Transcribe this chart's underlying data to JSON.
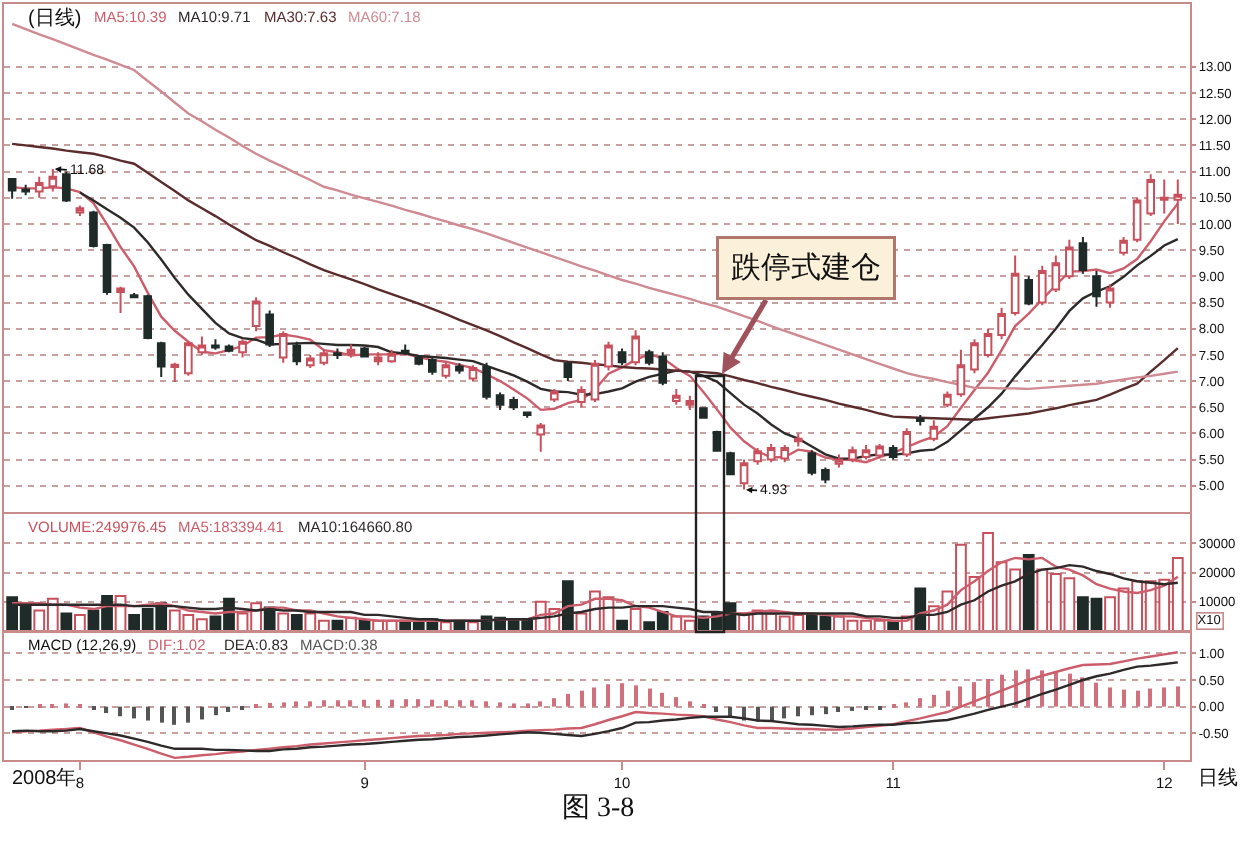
{
  "chart_data": [
    {
      "type": "candlestick",
      "title": "(日线)",
      "categories": [
        null,
        null,
        null,
        null,
        null,
        "8",
        null,
        null,
        null,
        null,
        null,
        null,
        null,
        null,
        null,
        null,
        null,
        null,
        null,
        null,
        null,
        null,
        null,
        null,
        null,
        null,
        "9",
        null,
        null,
        null,
        null,
        null,
        null,
        null,
        null,
        null,
        null,
        null,
        null,
        null,
        null,
        null,
        null,
        null,
        null,
        "10",
        null,
        null,
        null,
        null,
        null,
        null,
        null,
        null,
        null,
        null,
        null,
        null,
        null,
        null,
        null,
        null,
        null,
        null,
        null,
        "11",
        null,
        null,
        null,
        null,
        null,
        null,
        null,
        null,
        null,
        null,
        null,
        null,
        null,
        null,
        null,
        null,
        null,
        null,
        null,
        "12",
        null
      ],
      "ohlc": [
        [
          10.86,
          10.88,
          10.48,
          10.64
        ],
        [
          10.66,
          10.75,
          10.55,
          10.62
        ],
        [
          10.62,
          10.9,
          10.5,
          10.78
        ],
        [
          10.72,
          11.05,
          10.62,
          10.9
        ],
        [
          10.95,
          11.0,
          10.42,
          10.45
        ],
        [
          10.22,
          10.35,
          10.15,
          10.3
        ],
        [
          10.22,
          10.25,
          9.55,
          9.58
        ],
        [
          9.6,
          9.62,
          8.65,
          8.7
        ],
        [
          8.7,
          8.8,
          8.3,
          8.77
        ],
        [
          8.64,
          8.68,
          8.58,
          8.6
        ],
        [
          8.62,
          8.65,
          7.8,
          7.82
        ],
        [
          7.72,
          7.75,
          7.08,
          7.28
        ],
        [
          7.27,
          7.35,
          6.98,
          7.31
        ],
        [
          7.15,
          7.75,
          7.1,
          7.72
        ],
        [
          7.55,
          7.85,
          7.5,
          7.68
        ],
        [
          7.68,
          7.8,
          7.6,
          7.64
        ],
        [
          7.66,
          7.7,
          7.55,
          7.58
        ],
        [
          7.55,
          7.8,
          7.45,
          7.75
        ],
        [
          8.05,
          8.6,
          7.95,
          8.52
        ],
        [
          8.27,
          8.35,
          7.65,
          7.7
        ],
        [
          7.45,
          7.95,
          7.35,
          7.9
        ],
        [
          7.68,
          7.75,
          7.3,
          7.38
        ],
        [
          7.3,
          7.5,
          7.25,
          7.43
        ],
        [
          7.35,
          7.6,
          7.3,
          7.53
        ],
        [
          7.53,
          7.62,
          7.42,
          7.5
        ],
        [
          7.52,
          7.7,
          7.45,
          7.6
        ],
        [
          7.62,
          7.65,
          7.45,
          7.47
        ],
        [
          7.38,
          7.55,
          7.3,
          7.45
        ],
        [
          7.38,
          7.6,
          7.35,
          7.52
        ],
        [
          7.58,
          7.7,
          7.5,
          7.54
        ],
        [
          7.44,
          7.5,
          7.3,
          7.33
        ],
        [
          7.4,
          7.45,
          7.12,
          7.18
        ],
        [
          7.1,
          7.35,
          7.05,
          7.3
        ],
        [
          7.28,
          7.34,
          7.14,
          7.2
        ],
        [
          7.05,
          7.3,
          7.0,
          7.25
        ],
        [
          7.27,
          7.35,
          6.65,
          6.7
        ],
        [
          6.73,
          6.78,
          6.45,
          6.55
        ],
        [
          6.64,
          6.7,
          6.45,
          6.5
        ],
        [
          6.4,
          6.42,
          6.3,
          6.35
        ],
        [
          5.98,
          6.2,
          5.65,
          6.15
        ],
        [
          6.65,
          6.85,
          6.6,
          6.8
        ],
        [
          7.34,
          7.38,
          7.0,
          7.08
        ],
        [
          6.6,
          6.9,
          6.5,
          6.83
        ],
        [
          6.65,
          7.4,
          6.6,
          7.33
        ],
        [
          7.28,
          7.75,
          7.2,
          7.68
        ],
        [
          7.55,
          7.62,
          7.3,
          7.36
        ],
        [
          7.36,
          7.97,
          7.3,
          7.85
        ],
        [
          7.55,
          7.6,
          7.3,
          7.35
        ],
        [
          7.47,
          7.55,
          6.92,
          6.97
        ],
        [
          6.62,
          6.85,
          6.55,
          6.72
        ],
        [
          6.55,
          6.72,
          6.45,
          6.62
        ],
        [
          6.48,
          6.5,
          6.28,
          6.3
        ],
        [
          6.03,
          6.05,
          5.65,
          5.67
        ],
        [
          5.62,
          5.65,
          5.2,
          5.22
        ],
        [
          5.05,
          5.5,
          4.93,
          5.43
        ],
        [
          5.47,
          5.72,
          5.4,
          5.66
        ],
        [
          5.5,
          5.8,
          5.45,
          5.72
        ],
        [
          5.52,
          5.78,
          5.45,
          5.72
        ],
        [
          5.85,
          6.0,
          5.75,
          5.9
        ],
        [
          5.62,
          5.68,
          5.2,
          5.25
        ],
        [
          5.3,
          5.35,
          5.05,
          5.12
        ],
        [
          5.42,
          5.6,
          5.35,
          5.5
        ],
        [
          5.5,
          5.75,
          5.45,
          5.68
        ],
        [
          5.55,
          5.78,
          5.5,
          5.68
        ],
        [
          5.58,
          5.8,
          5.52,
          5.75
        ],
        [
          5.72,
          5.78,
          5.5,
          5.55
        ],
        [
          5.6,
          6.1,
          5.55,
          6.03
        ],
        [
          6.28,
          6.35,
          6.15,
          6.24
        ],
        [
          5.9,
          6.25,
          5.85,
          6.13
        ],
        [
          6.55,
          6.8,
          6.5,
          6.74
        ],
        [
          6.75,
          7.6,
          6.7,
          7.3
        ],
        [
          7.22,
          7.8,
          7.15,
          7.72
        ],
        [
          7.5,
          8.0,
          7.45,
          7.9
        ],
        [
          7.88,
          8.4,
          7.8,
          8.28
        ],
        [
          8.3,
          9.4,
          8.25,
          9.05
        ],
        [
          8.93,
          9.0,
          8.45,
          8.48
        ],
        [
          8.5,
          9.2,
          8.45,
          9.1
        ],
        [
          8.75,
          9.4,
          8.7,
          9.25
        ],
        [
          9.0,
          9.7,
          8.95,
          9.55
        ],
        [
          9.63,
          9.75,
          9.05,
          9.12
        ],
        [
          9.0,
          9.1,
          8.42,
          8.62
        ],
        [
          8.5,
          8.85,
          8.4,
          8.77
        ],
        [
          9.45,
          9.75,
          9.4,
          9.68
        ],
        [
          9.7,
          10.5,
          9.65,
          10.45
        ],
        [
          10.2,
          10.95,
          10.15,
          10.84
        ],
        [
          10.46,
          10.85,
          10.2,
          10.5
        ],
        [
          10.46,
          10.85,
          10.0,
          10.56
        ]
      ],
      "colors": [
        "#1f2b28",
        "#1f2b28",
        "#c8505c",
        "#c8505c",
        "#1f2b28",
        "#c8505c",
        "#1f2b28",
        "#1f2b28",
        "#c8505c",
        "#1f2b28",
        "#1f2b28",
        "#1f2b28",
        "#c8505c",
        "#c8505c",
        "#c8505c",
        "#1f2b28",
        "#1f2b28",
        "#c8505c",
        "#c8505c",
        "#1f2b28",
        "#c8505c",
        "#1f2b28",
        "#c8505c",
        "#c8505c",
        "#1f2b28",
        "#c8505c",
        "#1f2b28",
        "#c8505c",
        "#c8505c",
        "#1f2b28",
        "#1f2b28",
        "#1f2b28",
        "#c8505c",
        "#1f2b28",
        "#c8505c",
        "#1f2b28",
        "#1f2b28",
        "#1f2b28",
        "#1f2b28",
        "#c8505c",
        "#c8505c",
        "#1f2b28",
        "#c8505c",
        "#c8505c",
        "#c8505c",
        "#1f2b28",
        "#c8505c",
        "#1f2b28",
        "#1f2b28",
        "#c8505c",
        "#c8505c",
        "#1f2b28",
        "#1f2b28",
        "#1f2b28",
        "#c8505c",
        "#c8505c",
        "#c8505c",
        "#c8505c",
        "#c8505c",
        "#1f2b28",
        "#1f2b28",
        "#c8505c",
        "#c8505c",
        "#c8505c",
        "#c8505c",
        "#1f2b28",
        "#c8505c",
        "#1f2b28",
        "#c8505c",
        "#c8505c",
        "#c8505c",
        "#c8505c",
        "#c8505c",
        "#c8505c",
        "#c8505c",
        "#1f2b28",
        "#c8505c",
        "#c8505c",
        "#c8505c",
        "#1f2b28",
        "#1f2b28",
        "#c8505c",
        "#c8505c",
        "#c8505c",
        "#c8505c",
        "#c8505c",
        "#c8505c"
      ],
      "series": [
        {
          "name": "MA5:10.39",
          "type": "line",
          "color": "#cc5d6b",
          "values": [
            10.7,
            10.68,
            10.68,
            10.7,
            10.68,
            10.61,
            10.4,
            9.99,
            9.56,
            9.19,
            8.69,
            8.23,
            7.96,
            7.75,
            7.56,
            7.53,
            7.59,
            7.67,
            7.83,
            7.84,
            7.89,
            7.85,
            7.79,
            7.59,
            7.55,
            7.49,
            7.51,
            7.51,
            7.51,
            7.52,
            7.46,
            7.4,
            7.37,
            7.31,
            7.25,
            7.13,
            7.0,
            6.84,
            6.67,
            6.45,
            6.47,
            6.58,
            6.64,
            6.84,
            7.14,
            7.26,
            7.41,
            7.51,
            7.44,
            7.25,
            7.1,
            6.79,
            6.46,
            6.11,
            5.85,
            5.66,
            5.54,
            5.55,
            5.69,
            5.65,
            5.54,
            5.5,
            5.49,
            5.45,
            5.55,
            5.63,
            5.74,
            5.85,
            5.94,
            6.14,
            6.49,
            6.83,
            7.16,
            7.59,
            8.05,
            8.29,
            8.56,
            8.83,
            9.09,
            9.1,
            9.13,
            9.06,
            9.15,
            9.33,
            9.67,
            10.05,
            10.39
          ]
        },
        {
          "name": "MA10:9.71",
          "type": "line",
          "color": "#2e2a2a",
          "values": [
            null,
            null,
            null,
            null,
            null,
            10.6,
            10.45,
            10.28,
            10.12,
            9.93,
            9.65,
            9.32,
            8.97,
            8.65,
            8.38,
            8.11,
            7.91,
            7.82,
            7.79,
            7.7,
            7.71,
            7.72,
            7.73,
            7.71,
            7.69,
            7.69,
            7.68,
            7.65,
            7.55,
            7.53,
            7.48,
            7.46,
            7.44,
            7.41,
            7.38,
            7.29,
            7.2,
            7.11,
            6.99,
            6.85,
            6.8,
            6.79,
            6.74,
            6.75,
            6.8,
            6.86,
            6.99,
            7.08,
            7.14,
            7.2,
            7.18,
            7.1,
            6.99,
            6.77,
            6.55,
            6.38,
            6.17,
            6.0,
            5.9,
            5.75,
            5.6,
            5.52,
            5.52,
            5.57,
            5.6,
            5.59,
            5.62,
            5.67,
            5.69,
            5.84,
            6.06,
            6.28,
            6.5,
            6.76,
            7.09,
            7.39,
            7.69,
            8.0,
            8.34,
            8.58,
            8.71,
            8.81,
            8.99,
            9.21,
            9.39,
            9.59,
            9.71
          ]
        },
        {
          "name": "MA30:7.63",
          "type": "line",
          "color": "#5a2c2c",
          "values": [
            11.53,
            11.5,
            11.47,
            11.44,
            11.4,
            11.37,
            11.34,
            11.28,
            11.21,
            11.15,
            10.98,
            10.8,
            10.63,
            10.45,
            10.3,
            10.15,
            9.99,
            9.84,
            9.69,
            9.58,
            9.46,
            9.35,
            9.23,
            9.12,
            9.03,
            8.94,
            8.85,
            8.75,
            8.66,
            8.57,
            8.48,
            8.38,
            8.28,
            8.17,
            8.07,
            7.97,
            7.86,
            7.74,
            7.63,
            7.51,
            7.4,
            7.37,
            7.35,
            7.32,
            7.3,
            7.27,
            7.25,
            7.24,
            7.22,
            7.2,
            7.18,
            7.17,
            7.15,
            7.09,
            7.02,
            6.96,
            6.89,
            6.83,
            6.76,
            6.7,
            6.64,
            6.57,
            6.51,
            6.45,
            6.38,
            6.32,
            6.31,
            6.3,
            6.29,
            6.28,
            6.27,
            6.26,
            6.29,
            6.32,
            6.35,
            6.38,
            6.43,
            6.48,
            6.54,
            6.59,
            6.64,
            6.74,
            6.85,
            6.95,
            7.18,
            7.4,
            7.63
          ]
        },
        {
          "name": "MA60:7.18",
          "type": "line",
          "color": "#cf8a92",
          "values": [
            13.82,
            13.72,
            13.62,
            13.53,
            13.43,
            13.33,
            13.23,
            13.14,
            13.04,
            12.94,
            12.73,
            12.53,
            12.32,
            12.11,
            11.96,
            11.8,
            11.65,
            11.49,
            11.34,
            11.21,
            11.09,
            10.96,
            10.84,
            10.71,
            10.64,
            10.56,
            10.49,
            10.42,
            10.35,
            10.27,
            10.2,
            10.12,
            10.05,
            9.97,
            9.9,
            9.82,
            9.73,
            9.64,
            9.55,
            9.46,
            9.37,
            9.28,
            9.19,
            9.11,
            9.02,
            8.93,
            8.86,
            8.78,
            8.71,
            8.64,
            8.57,
            8.49,
            8.42,
            8.33,
            8.24,
            8.15,
            8.05,
            7.96,
            7.87,
            7.78,
            7.69,
            7.6,
            7.51,
            7.42,
            7.33,
            7.24,
            7.15,
            7.09,
            7.04,
            6.98,
            6.93,
            6.87,
            6.87,
            6.86,
            6.86,
            6.85,
            6.87,
            6.89,
            6.91,
            6.93,
            6.95,
            6.99,
            7.03,
            7.07,
            7.1,
            7.14,
            7.18
          ]
        }
      ],
      "ylim": [
        4.5,
        14.2
      ],
      "yticks": [
        {
          "value": 5,
          "label": "5.00"
        },
        {
          "value": 5.5,
          "label": "5.50"
        },
        {
          "value": 6,
          "label": "6.00"
        },
        {
          "value": 6.5,
          "label": "6.50"
        },
        {
          "value": 7,
          "label": "7.00"
        },
        {
          "value": 7.5,
          "label": "7.50"
        },
        {
          "value": 8,
          "label": "8.00"
        },
        {
          "value": 8.5,
          "label": "8.50"
        },
        {
          "value": 9,
          "label": "9.00"
        },
        {
          "value": 9.5,
          "label": "9.50"
        },
        {
          "value": 10,
          "label": "10.00"
        },
        {
          "value": 10.5,
          "label": "10.50"
        },
        {
          "value": 11,
          "label": "11.00"
        },
        {
          "value": 11.5,
          "label": "11.50"
        },
        {
          "value": 12,
          "label": "12.00"
        },
        {
          "value": 12.5,
          "label": "12.50"
        },
        {
          "value": 13,
          "label": "13.00"
        }
      ],
      "grid": "y",
      "legend": "top left",
      "tick_labels": "y",
      "annotations": [
        "11.68",
        "4.93",
        "跌停式建仓"
      ]
    },
    {
      "type": "bar",
      "categories": [
        null,
        null,
        null,
        null,
        null,
        "8",
        null,
        null,
        null,
        null,
        null,
        null,
        null,
        null,
        null,
        null,
        null,
        null,
        null,
        null,
        null,
        null,
        null,
        null,
        null,
        null,
        "9",
        null,
        null,
        null,
        null,
        null,
        null,
        null,
        null,
        null,
        null,
        null,
        null,
        null,
        null,
        null,
        null,
        null,
        null,
        "10",
        null,
        null,
        null,
        null,
        null,
        null,
        null,
        null,
        null,
        null,
        null,
        null,
        null,
        null,
        null,
        null,
        null,
        null,
        null,
        "11",
        null,
        null,
        null,
        null,
        null,
        null,
        null,
        null,
        null,
        null,
        null,
        null,
        null,
        null,
        null,
        null,
        null,
        null,
        null,
        "12",
        null
      ],
      "series": [
        {
          "name": "VOLUME:249976.45",
          "color": "#c8505c",
          "colors": [
            "#1f2b28",
            "#1f2b28",
            "#c8505c",
            "#c8505c",
            "#1f2b28",
            "#c8505c",
            "#1f2b28",
            "#1f2b28",
            "#c8505c",
            "#1f2b28",
            "#1f2b28",
            "#1f2b28",
            "#c8505c",
            "#c8505c",
            "#c8505c",
            "#1f2b28",
            "#1f2b28",
            "#c8505c",
            "#c8505c",
            "#1f2b28",
            "#c8505c",
            "#1f2b28",
            "#c8505c",
            "#c8505c",
            "#1f2b28",
            "#c8505c",
            "#1f2b28",
            "#c8505c",
            "#c8505c",
            "#1f2b28",
            "#1f2b28",
            "#1f2b28",
            "#c8505c",
            "#1f2b28",
            "#c8505c",
            "#1f2b28",
            "#1f2b28",
            "#1f2b28",
            "#1f2b28",
            "#c8505c",
            "#c8505c",
            "#1f2b28",
            "#c8505c",
            "#c8505c",
            "#c8505c",
            "#1f2b28",
            "#c8505c",
            "#1f2b28",
            "#1f2b28",
            "#c8505c",
            "#c8505c",
            "#1f2b28",
            "#1f2b28",
            "#1f2b28",
            "#c8505c",
            "#c8505c",
            "#c8505c",
            "#c8505c",
            "#c8505c",
            "#1f2b28",
            "#1f2b28",
            "#c8505c",
            "#c8505c",
            "#c8505c",
            "#c8505c",
            "#1f2b28",
            "#c8505c",
            "#1f2b28",
            "#c8505c",
            "#c8505c",
            "#c8505c",
            "#c8505c",
            "#c8505c",
            "#c8505c",
            "#c8505c",
            "#1f2b28",
            "#c8505c",
            "#c8505c",
            "#c8505c",
            "#1f2b28",
            "#1f2b28",
            "#c8505c",
            "#c8505c",
            "#c8505c",
            "#c8505c",
            "#c8505c",
            "#c8505c"
          ],
          "values": [
            11500,
            9500,
            7000,
            11000,
            6000,
            5500,
            7000,
            12000,
            12000,
            5500,
            7500,
            9500,
            7000,
            5500,
            4000,
            5000,
            11000,
            6000,
            9500,
            8000,
            6000,
            5500,
            6000,
            3500,
            3500,
            4500,
            3500,
            3500,
            3500,
            3500,
            4000,
            4000,
            3000,
            3500,
            3000,
            5000,
            4500,
            3500,
            3500,
            10000,
            7500,
            17000,
            6000,
            13500,
            11500,
            3500,
            7500,
            3000,
            6500,
            5000,
            3500,
            5000,
            6000,
            9500,
            6000,
            7000,
            6000,
            5000,
            5500,
            5500,
            5000,
            5000,
            3500,
            3500,
            3500,
            3000,
            5000,
            14500,
            8500,
            13500,
            29500,
            18500,
            33500,
            23500,
            21000,
            26000,
            21000,
            19500,
            18000,
            11500,
            11000,
            11500,
            14500,
            17000,
            17000,
            17500,
            25000
          ]
        },
        {
          "name": "MA5:183394.41",
          "type": "line",
          "color": "#cc5d6b",
          "values": [
            9500,
            9500,
            9500,
            9000,
            9000,
            8000,
            7500,
            8500,
            8500,
            8500,
            9000,
            9500,
            8500,
            7000,
            6500,
            6000,
            6500,
            6500,
            7000,
            8000,
            8000,
            7000,
            7000,
            6000,
            5000,
            4500,
            4000,
            3500,
            3500,
            3500,
            3500,
            3500,
            3500,
            3500,
            3500,
            3500,
            4000,
            4000,
            4000,
            5500,
            6000,
            8500,
            9000,
            11000,
            11000,
            10500,
            8500,
            8000,
            6500,
            5000,
            5000,
            4500,
            5000,
            6000,
            6000,
            6500,
            7000,
            6500,
            6000,
            6000,
            5500,
            5000,
            5000,
            4500,
            4000,
            3500,
            3500,
            6000,
            7000,
            9000,
            14000,
            17000,
            20500,
            23500,
            25000,
            24500,
            25000,
            22000,
            21000,
            19000,
            16000,
            14500,
            13500,
            13000,
            14000,
            15500,
            18500
          ]
        },
        {
          "name": "MA10:164660.80",
          "type": "line",
          "color": "#2e2a2a",
          "values": [
            9000,
            9000,
            9000,
            9000,
            9000,
            9000,
            9000,
            9000,
            9000,
            8500,
            8500,
            8500,
            8500,
            8000,
            7500,
            7500,
            8000,
            7500,
            7000,
            7500,
            7000,
            7000,
            6500,
            6500,
            6500,
            6500,
            5500,
            5500,
            5000,
            4500,
            4000,
            4000,
            3500,
            3500,
            3500,
            3500,
            4000,
            4000,
            4000,
            4500,
            5000,
            6000,
            6500,
            7500,
            8000,
            8000,
            8500,
            8500,
            8500,
            8000,
            7500,
            6500,
            6500,
            6000,
            5500,
            6000,
            6000,
            6000,
            6000,
            6000,
            6000,
            6000,
            6000,
            5000,
            5000,
            4500,
            4500,
            5500,
            5500,
            6500,
            9000,
            10500,
            13500,
            15500,
            17000,
            19500,
            21000,
            21500,
            22500,
            22000,
            20500,
            19500,
            18000,
            17000,
            16500,
            16000,
            16500
          ]
        }
      ],
      "ylim": [
        0,
        40000
      ],
      "yticks": [
        10000,
        20000,
        30000
      ],
      "ylabel": "X10",
      "grid": "y",
      "legend": "top left",
      "tick_labels": "y"
    },
    {
      "type": "line",
      "title": "MACD (12,26,9)",
      "categories": [
        null,
        null,
        null,
        null,
        null,
        "8",
        null,
        null,
        null,
        null,
        null,
        null,
        null,
        null,
        null,
        null,
        null,
        null,
        null,
        null,
        null,
        null,
        null,
        null,
        null,
        null,
        "9",
        null,
        null,
        null,
        null,
        null,
        null,
        null,
        null,
        null,
        null,
        null,
        null,
        null,
        null,
        null,
        null,
        null,
        null,
        "10",
        null,
        null,
        null,
        null,
        null,
        null,
        null,
        null,
        null,
        null,
        null,
        null,
        null,
        null,
        null,
        null,
        null,
        null,
        null,
        "11",
        null,
        null,
        null,
        null,
        null,
        null,
        null,
        null,
        null,
        null,
        null,
        null,
        null,
        null,
        null,
        null,
        null,
        null,
        null,
        "12",
        null
      ],
      "series": [
        {
          "name": "DIF:1.02",
          "color": "#cc5d6b",
          "values": [
            -0.48,
            -0.46,
            -0.45,
            -0.43,
            -0.42,
            -0.4,
            -0.48,
            -0.56,
            -0.63,
            -0.71,
            -0.79,
            -0.88,
            -0.96,
            -0.94,
            -0.91,
            -0.89,
            -0.86,
            -0.84,
            -0.81,
            -0.79,
            -0.76,
            -0.74,
            -0.71,
            -0.69,
            -0.67,
            -0.65,
            -0.63,
            -0.61,
            -0.59,
            -0.57,
            -0.55,
            -0.54,
            -0.53,
            -0.51,
            -0.5,
            -0.49,
            -0.48,
            -0.47,
            -0.45,
            -0.44,
            -0.43,
            -0.41,
            -0.4,
            -0.33,
            -0.25,
            -0.18,
            -0.1,
            -0.12,
            -0.13,
            -0.15,
            -0.16,
            -0.18,
            -0.24,
            -0.29,
            -0.35,
            -0.4,
            -0.4,
            -0.41,
            -0.42,
            -0.42,
            -0.43,
            -0.43,
            -0.41,
            -0.38,
            -0.36,
            -0.33,
            -0.27,
            -0.22,
            -0.16,
            -0.1,
            0.0,
            0.1,
            0.2,
            0.3,
            0.4,
            0.5,
            0.58,
            0.65,
            0.72,
            0.78,
            0.79,
            0.8,
            0.85,
            0.9,
            0.94,
            0.98,
            1.02
          ]
        },
        {
          "name": "DEA:0.83",
          "color": "#2e2a2a",
          "values": [
            -0.46,
            -0.45,
            -0.46,
            -0.46,
            -0.45,
            -0.42,
            -0.46,
            -0.5,
            -0.54,
            -0.6,
            -0.66,
            -0.73,
            -0.79,
            -0.79,
            -0.79,
            -0.81,
            -0.81,
            -0.82,
            -0.83,
            -0.83,
            -0.8,
            -0.79,
            -0.76,
            -0.75,
            -0.73,
            -0.71,
            -0.7,
            -0.68,
            -0.66,
            -0.64,
            -0.62,
            -0.61,
            -0.59,
            -0.57,
            -0.56,
            -0.54,
            -0.52,
            -0.5,
            -0.48,
            -0.49,
            -0.51,
            -0.53,
            -0.55,
            -0.51,
            -0.46,
            -0.4,
            -0.3,
            -0.29,
            -0.26,
            -0.24,
            -0.21,
            -0.19,
            -0.19,
            -0.19,
            -0.22,
            -0.26,
            -0.27,
            -0.3,
            -0.33,
            -0.34,
            -0.36,
            -0.38,
            -0.37,
            -0.35,
            -0.34,
            -0.34,
            -0.31,
            -0.3,
            -0.27,
            -0.25,
            -0.19,
            -0.13,
            -0.06,
            0.0,
            0.06,
            0.15,
            0.24,
            0.32,
            0.41,
            0.5,
            0.57,
            0.62,
            0.69,
            0.75,
            0.77,
            0.8,
            0.83
          ]
        },
        {
          "name": "MACD:0.38",
          "type": "bar",
          "color": "#555555",
          "colors": [
            "#555555",
            "#555555",
            "#d0707c",
            "#d0707c",
            "#d0707c",
            "#d0707c",
            "#555555",
            "#555555",
            "#555555",
            "#555555",
            "#555555",
            "#555555",
            "#555555",
            "#555555",
            "#555555",
            "#555555",
            "#555555",
            "#555555",
            "#d0707c",
            "#d0707c",
            "#d0707c",
            "#d0707c",
            "#d0707c",
            "#d0707c",
            "#d0707c",
            "#d0707c",
            "#d0707c",
            "#d0707c",
            "#d0707c",
            "#d0707c",
            "#d0707c",
            "#d0707c",
            "#d0707c",
            "#d0707c",
            "#d0707c",
            "#d0707c",
            "#d0707c",
            "#d0707c",
            "#d0707c",
            "#d0707c",
            "#d0707c",
            "#d0707c",
            "#d0707c",
            "#d0707c",
            "#d0707c",
            "#d0707c",
            "#d0707c",
            "#d0707c",
            "#d0707c",
            "#d0707c",
            "#d0707c",
            "#d0707c",
            "#555555",
            "#555555",
            "#555555",
            "#555555",
            "#555555",
            "#555555",
            "#555555",
            "#555555",
            "#555555",
            "#555555",
            "#555555",
            "#555555",
            "#555555",
            "#d0707c",
            "#d0707c",
            "#d0707c",
            "#d0707c",
            "#d0707c",
            "#d0707c",
            "#d0707c",
            "#d0707c",
            "#d0707c",
            "#d0707c",
            "#d0707c",
            "#d0707c",
            "#d0707c",
            "#d0707c",
            "#d0707c",
            "#d0707c",
            "#d0707c",
            "#d0707c",
            "#d0707c",
            "#d0707c",
            "#d0707c",
            "#d0707c"
          ],
          "values": [
            -0.04,
            -0.02,
            0.02,
            0.05,
            0.06,
            0.03,
            -0.04,
            -0.12,
            -0.18,
            -0.22,
            -0.26,
            -0.3,
            -0.34,
            -0.3,
            -0.24,
            -0.16,
            -0.1,
            -0.04,
            0.04,
            0.07,
            0.08,
            0.1,
            0.1,
            0.12,
            0.12,
            0.12,
            0.13,
            0.13,
            0.13,
            0.14,
            0.14,
            0.13,
            0.12,
            0.12,
            0.12,
            0.1,
            0.08,
            0.06,
            0.06,
            0.1,
            0.16,
            0.24,
            0.3,
            0.36,
            0.42,
            0.44,
            0.4,
            0.34,
            0.26,
            0.18,
            0.1,
            0.02,
            -0.1,
            -0.2,
            -0.26,
            -0.28,
            -0.26,
            -0.22,
            -0.18,
            -0.16,
            -0.14,
            -0.1,
            -0.08,
            -0.06,
            -0.04,
            0.02,
            0.08,
            0.16,
            0.22,
            0.3,
            0.38,
            0.46,
            0.52,
            0.6,
            0.68,
            0.7,
            0.68,
            0.66,
            0.62,
            0.55,
            0.45,
            0.36,
            0.32,
            0.3,
            0.34,
            0.36,
            0.38
          ]
        }
      ],
      "ylim": [
        -1.0,
        1.4
      ],
      "yticks": [
        {
          "value": 1,
          "label": "1.00"
        },
        {
          "value": 0.5,
          "label": "0.50"
        },
        {
          "value": 0,
          "label": "0.00"
        },
        {
          "value": -0.5,
          "label": "-0.50"
        }
      ],
      "grid": "y",
      "legend": "top left",
      "annotations": [
        "2008年",
        "日线",
        "图 3-8"
      ]
    }
  ]
}
